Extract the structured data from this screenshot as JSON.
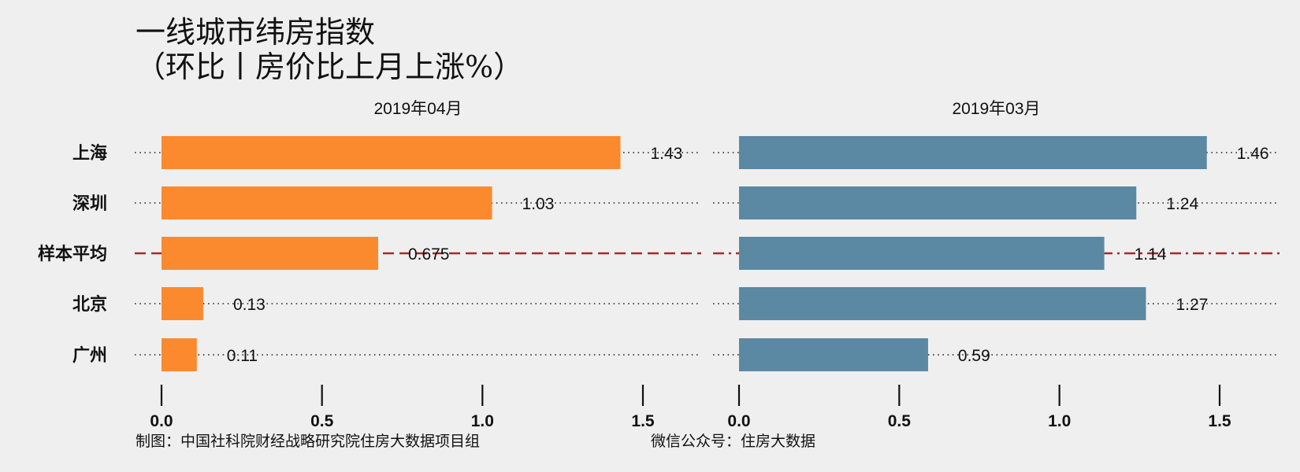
{
  "chart_data": {
    "type": "bar",
    "orientation": "horizontal",
    "title": "一线城市纬房指数",
    "subtitle": "（环比丨房价比上月上涨%）",
    "categories": [
      "上海",
      "深圳",
      "样本平均",
      "北京",
      "广州"
    ],
    "series": [
      {
        "name": "2019年04月",
        "values": [
          1.43,
          1.03,
          0.675,
          0.13,
          0.11
        ],
        "labels": [
          "1.43",
          "1.03",
          "0.675",
          "0.13",
          "0.11"
        ],
        "color": "#fb8a2e"
      },
      {
        "name": "2019年03月",
        "values": [
          1.46,
          1.24,
          1.14,
          1.27,
          0.59
        ],
        "labels": [
          "1.46",
          "1.24",
          "1.14",
          "1.27",
          "0.59"
        ],
        "color": "#5b88a2"
      }
    ],
    "xlim": [
      0,
      1.65
    ],
    "xticks": [
      0.0,
      0.5,
      1.0,
      1.5
    ],
    "xtick_labels": [
      "0.0",
      "0.5",
      "1.0",
      "1.5"
    ],
    "average_category": "样本平均",
    "average_line_color": "#a52a2a",
    "grid": "dotted leader lines per category",
    "background": "#efefef",
    "caption_left": "制图：中国社科院财经战略研究院住房大数据项目组",
    "caption_right": "微信公众号：住房大数据"
  }
}
